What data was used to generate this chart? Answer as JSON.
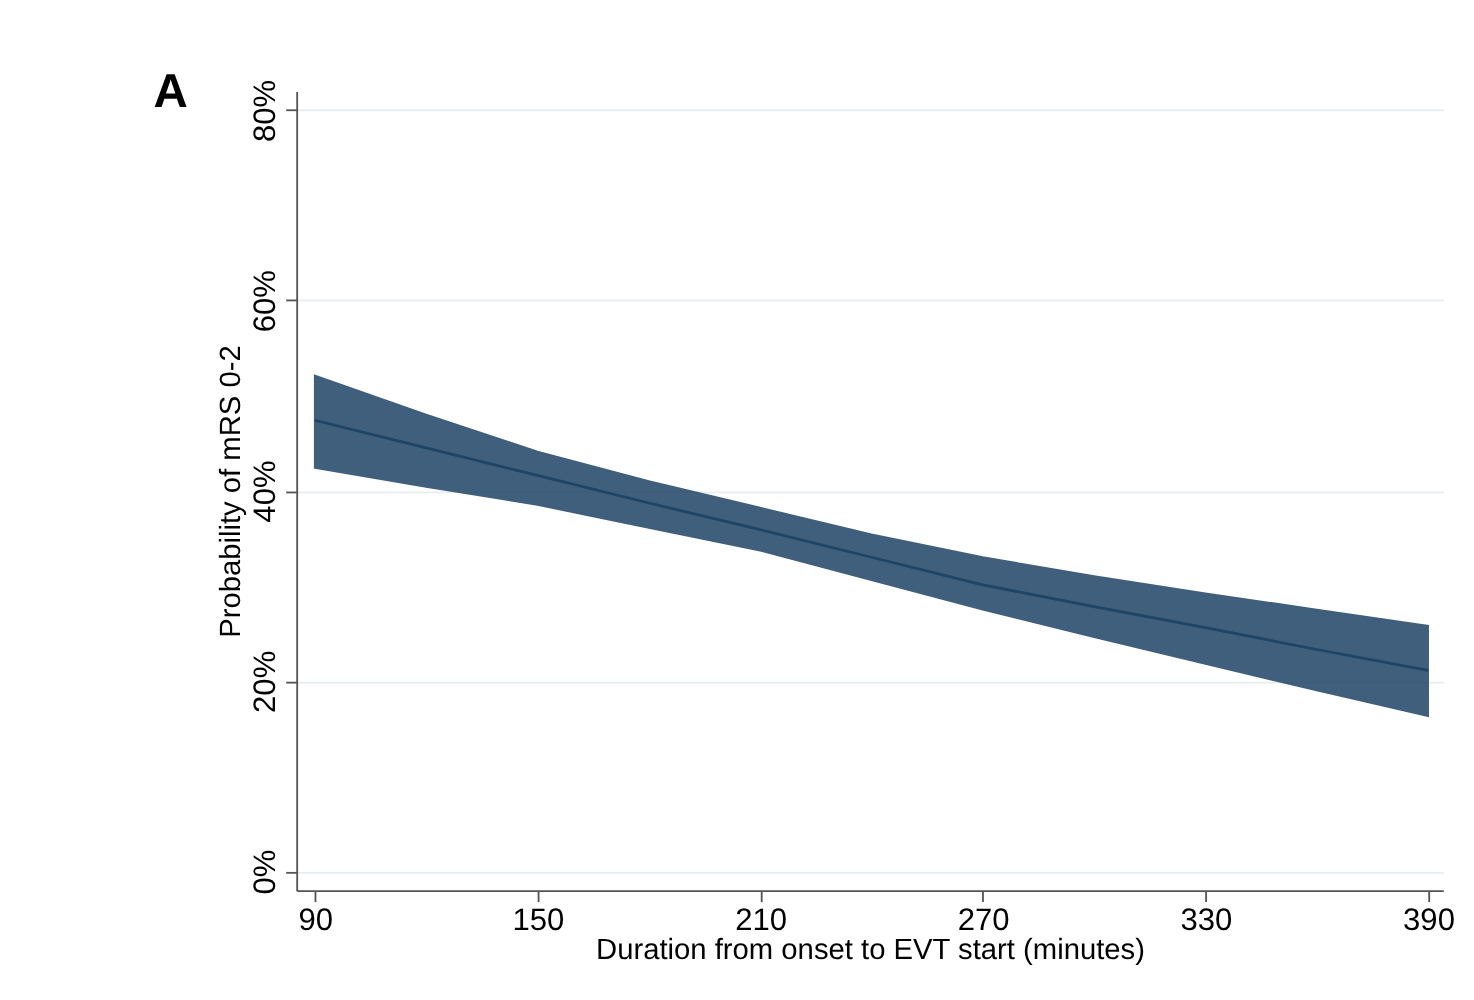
{
  "chart_data": {
    "type": "line",
    "xlabel": "Duration from onset to EVT start (minutes)",
    "ylabel": "Probability of mRS 0-2",
    "annotations": [
      "A"
    ],
    "x": [
      90,
      120,
      150,
      180,
      210,
      240,
      270,
      300,
      330,
      360,
      390
    ],
    "series": [
      {
        "color": "#1f4466",
        "values": [
          47.4,
          44.5,
          41.6,
          38.7,
          35.9,
          33.0,
          30.1,
          27.8,
          25.6,
          23.3,
          21.1
        ],
        "lower": [
          42.4,
          40.4,
          38.5,
          36.1,
          33.7,
          30.6,
          27.5,
          24.6,
          21.8,
          19.0,
          16.3
        ],
        "upper": [
          52.1,
          48.0,
          44.1,
          41.0,
          38.2,
          35.4,
          33.0,
          31.0,
          29.2,
          27.5,
          25.8
        ]
      }
    ],
    "xlim": [
      85,
      394
    ],
    "xticks": [
      90,
      150,
      210,
      270,
      330,
      390
    ],
    "ylim": [
      -2,
      82
    ],
    "yticks": [
      {
        "value": 0,
        "label": "0%"
      },
      {
        "value": 20,
        "label": "20%"
      },
      {
        "value": 40,
        "label": "40%"
      },
      {
        "value": 60,
        "label": "60%"
      },
      {
        "value": 80,
        "label": "80%"
      }
    ],
    "grid": "y"
  }
}
